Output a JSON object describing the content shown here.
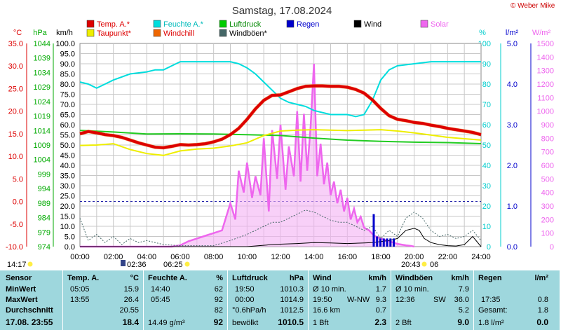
{
  "chart_data": {
    "type": "line",
    "title": "Samstag, 17.08.2024",
    "watermark": "© Weber Mike",
    "x_ticks": [
      "00:00",
      "02:00",
      "04:00",
      "06:00",
      "08:00",
      "10:00",
      "12:00",
      "14:00",
      "16:00",
      "18:00",
      "20:00",
      "22:00",
      "24:00"
    ],
    "xlim_hours": [
      0,
      24
    ],
    "axes": {
      "temp": {
        "label": "°C",
        "color": "#dd0000",
        "min": -10,
        "max": 35,
        "ticks": [
          "35.0",
          "30.0",
          "25.0",
          "20.0",
          "15.0",
          "10.0",
          "5.0",
          "0.0",
          "-5.0",
          "-10.0"
        ]
      },
      "hpa": {
        "label": "hPa",
        "color": "#00aa00",
        "ticks": [
          "1044",
          "1039",
          "1034",
          "1029",
          "1024",
          "1019",
          "1014",
          "1009",
          "1004",
          "999",
          "994",
          "989",
          "984",
          "979",
          "974"
        ]
      },
      "kmh": {
        "label": "km/h",
        "color": "#000000",
        "min": 0,
        "max": 100,
        "ticks": [
          "100.0",
          "95.0",
          "90.0",
          "85.0",
          "80.0",
          "75.0",
          "70.0",
          "65.0",
          "60.0",
          "55.0",
          "50.0",
          "45.0",
          "40.0",
          "35.0",
          "30.0",
          "25.0",
          "20.0",
          "15.0",
          "10.0",
          "5.0",
          "0.0"
        ]
      },
      "pct": {
        "label": "%",
        "color": "#00cccc",
        "min": 0,
        "max": 100,
        "ticks": [
          "100",
          "90",
          "80",
          "70",
          "60",
          "50",
          "40",
          "30",
          "20",
          "10",
          "0"
        ]
      },
      "rain": {
        "label": "l/m²",
        "color": "#0000cc",
        "min": 0,
        "max": 5,
        "ticks": [
          "5.0",
          "4.0",
          "3.0",
          "2.0",
          "1.0",
          "0.0"
        ]
      },
      "solar": {
        "label": "W/m²",
        "color": "#ee66ee",
        "min": 0,
        "max": 1500,
        "ticks": [
          "1500",
          "1400",
          "1300",
          "1200",
          "1100",
          "1000",
          "900",
          "800",
          "700",
          "600",
          "500",
          "400",
          "300",
          "200",
          "100",
          "0"
        ]
      }
    },
    "legend": [
      {
        "name": "Temp. A.*",
        "color": "#dd0000",
        "text_color": "#dd0000"
      },
      {
        "name": "Feuchte A.*",
        "color": "#00dddd",
        "text_color": "#00bbbb"
      },
      {
        "name": "Luftdruck",
        "color": "#00cc00",
        "text_color": "#008800"
      },
      {
        "name": "Regen",
        "color": "#0000cc",
        "text_color": "#0000cc"
      },
      {
        "name": "Wind",
        "color": "#000000",
        "text_color": "#000000"
      },
      {
        "name": "Solar",
        "color": "#ee66ee",
        "text_color": "#ee66ee"
      },
      {
        "name": "Taupunkt*",
        "color": "#eeee00",
        "text_color": "#dd0000"
      },
      {
        "name": "Windchill",
        "color": "#ee6600",
        "text_color": "#dd0000"
      },
      {
        "name": "Windböen*",
        "color": "#446666",
        "text_color": "#000000"
      }
    ],
    "series": {
      "temp": {
        "x": [
          0,
          0.5,
          1,
          1.5,
          2,
          2.5,
          3,
          3.5,
          4,
          4.5,
          5,
          5.5,
          6,
          6.5,
          7,
          7.5,
          8,
          8.5,
          9,
          9.5,
          10,
          10.5,
          11,
          11.5,
          12,
          12.5,
          13,
          13.5,
          14,
          14.5,
          15,
          15.5,
          16,
          16.5,
          17,
          17.5,
          18,
          18.5,
          19,
          19.5,
          20,
          20.5,
          21,
          21.5,
          22,
          22.5,
          23,
          23.5,
          24
        ],
        "y": [
          15.0,
          15.5,
          15.2,
          14.8,
          14.6,
          14.2,
          13.6,
          13.0,
          12.5,
          12.0,
          11.9,
          12.2,
          12.6,
          12.5,
          12.6,
          12.8,
          13.2,
          13.8,
          14.8,
          16.2,
          18.2,
          20.5,
          22.4,
          23.5,
          23.6,
          24.3,
          25.0,
          25.5,
          25.6,
          25.6,
          25.5,
          25.5,
          25.3,
          24.8,
          24.0,
          22.5,
          20.6,
          19.0,
          18.2,
          17.9,
          17.5,
          17.3,
          16.9,
          16.6,
          16.2,
          15.9,
          15.6,
          15.3,
          14.8
        ]
      },
      "dewpoint": {
        "x": [
          0,
          1,
          2,
          3,
          4,
          5,
          6,
          7,
          8,
          9,
          10,
          11,
          12,
          13,
          14,
          15,
          16,
          17,
          18,
          19,
          20,
          21,
          22,
          23,
          24
        ],
        "y": [
          12.4,
          12.5,
          12.8,
          11.5,
          10.6,
          10.2,
          11.2,
          11.6,
          11.8,
          12.3,
          13.0,
          14.6,
          15.6,
          15.8,
          15.9,
          15.8,
          15.7,
          15.8,
          15.9,
          15.6,
          15.2,
          14.7,
          14.2,
          13.9,
          13.6
        ]
      },
      "humidity": {
        "x": [
          0,
          0.5,
          1,
          1.5,
          2,
          3,
          4,
          4.5,
          5,
          5.5,
          6,
          7,
          8,
          9,
          9.5,
          10,
          10.5,
          11,
          11.5,
          12,
          12.5,
          13,
          13.5,
          14,
          14.5,
          15,
          15.5,
          16,
          16.5,
          17,
          17.5,
          18,
          18.5,
          19,
          20,
          21,
          22,
          23,
          23.5,
          24
        ],
        "y": [
          81,
          80,
          78,
          80,
          82,
          85,
          86,
          87,
          87,
          89,
          91,
          91,
          91,
          91,
          90,
          88,
          85,
          81,
          77,
          73,
          71,
          70,
          69,
          67,
          66,
          65,
          65,
          65,
          64,
          65,
          72,
          82,
          87,
          89,
          90,
          91,
          91,
          91,
          91,
          91
        ],
        "dash_x_start": 20,
        "note": "humidity Feuchte A.*"
      },
      "pressure_pct": {
        "x": [
          0,
          2,
          4,
          6,
          8,
          10,
          12,
          14,
          16,
          18,
          20,
          22,
          24
        ],
        "y": [
          57.2,
          56.4,
          55.4,
          55.5,
          55.4,
          55.1,
          54.7,
          53.4,
          52.4,
          51.8,
          51.4,
          51.2,
          50.7
        ]
      },
      "solar": {
        "x": [
          0,
          5.5,
          6,
          6.5,
          7,
          7.5,
          8,
          8.5,
          9,
          9.3,
          9.5,
          9.8,
          10,
          10.3,
          10.5,
          10.8,
          11,
          11.3,
          11.5,
          11.8,
          12,
          12.3,
          12.5,
          12.8,
          13,
          13.2,
          13.4,
          13.6,
          13.8,
          14,
          14.2,
          14.4,
          14.6,
          14.8,
          15,
          15.2,
          15.4,
          15.6,
          15.8,
          16,
          16.2,
          16.4,
          16.6,
          16.8,
          17,
          17.3,
          17.6,
          18,
          18.5,
          19,
          19.5,
          19.8,
          20
        ],
        "y": [
          0,
          0,
          10,
          40,
          60,
          80,
          100,
          120,
          320,
          200,
          560,
          400,
          620,
          360,
          520,
          380,
          800,
          260,
          860,
          500,
          900,
          420,
          740,
          520,
          1000,
          480,
          980,
          560,
          880,
          1350,
          520,
          760,
          460,
          620,
          380,
          480,
          320,
          420,
          260,
          360,
          200,
          280,
          180,
          220,
          140,
          120,
          80,
          60,
          40,
          20,
          10,
          5,
          0
        ]
      },
      "wind": {
        "x": [
          0,
          5,
          8,
          10,
          11.5,
          12,
          13,
          14,
          15,
          16,
          17,
          17.5,
          18,
          18.5,
          19,
          19.5,
          20,
          20.3,
          20.6,
          21,
          21.5,
          22,
          22.5,
          23,
          23.5,
          24
        ],
        "y": [
          0,
          0,
          0,
          0,
          1,
          1.2,
          1.5,
          2,
          1.8,
          1.5,
          1.8,
          2,
          2.5,
          3,
          4,
          8,
          9,
          8,
          4,
          2,
          1,
          0.5,
          0.3,
          1,
          5,
          0
        ]
      },
      "gusts": {
        "x": [
          0,
          0.5,
          1,
          1.5,
          2,
          2.5,
          3,
          3.5,
          4,
          5,
          6,
          7,
          8,
          9,
          10,
          10.5,
          11,
          11.5,
          12,
          12.5,
          13,
          13.5,
          14,
          14.5,
          15,
          15.5,
          16,
          16.5,
          17,
          17.5,
          18,
          18.5,
          19,
          19.5,
          20,
          20.5,
          21,
          21.5,
          22,
          22.5,
          23,
          23.5,
          24
        ],
        "y": [
          14,
          3,
          6,
          2,
          5,
          1,
          4,
          2,
          3,
          1,
          0.5,
          0.5,
          0.5,
          3,
          6,
          8,
          10,
          12,
          12,
          14,
          16,
          18,
          17,
          15,
          13,
          12,
          12,
          10,
          8,
          10,
          4,
          8,
          5,
          14,
          17,
          14,
          8,
          5,
          6,
          4,
          5,
          8,
          3
        ]
      },
      "rain_bars": {
        "x": [
          17.6,
          17.8,
          18.0,
          18.2,
          18.4,
          18.6,
          18.8
        ],
        "y": [
          0.8,
          0.25,
          0.2,
          0.2,
          0.2,
          0.2,
          0.2
        ]
      }
    },
    "bottom_markers": [
      {
        "text": "14:17",
        "type": "time"
      },
      {
        "text": "02:36",
        "type": "moon"
      },
      {
        "text": "06:25",
        "type": "sunrise"
      },
      {
        "text": "20:43",
        "type": "sunset"
      },
      {
        "text": "06",
        "type": "moon"
      }
    ]
  },
  "table": {
    "sensor": {
      "h": "Sensor",
      "r1": "MinWert",
      "r2": "MaxWert",
      "r3": "Durchschnitt",
      "r4": "17.08. 23:55"
    },
    "temp": {
      "h": "Temp. A.",
      "u": "°C",
      "min_t": "05:05",
      "min_v": "15.9",
      "max_t": "13:55",
      "max_v": "26.4",
      "avg_v": "20.55",
      "now_v": "18.4"
    },
    "hum": {
      "h": "Feuchte A.",
      "u": "%",
      "min_t": "14:40",
      "min_v": "62",
      "max_t": "05:45",
      "max_v": "92",
      "avg_v": "82",
      "now_l": "14.49 g/m³",
      "now_v": "92"
    },
    "press": {
      "h": "Luftdruck",
      "u": "hPa",
      "min_t": "19:50",
      "min_v": "1010.3",
      "max_t": "00:00",
      "max_v": "1014.9",
      "avg_l": "°0.6hPa/h",
      "avg_v": "1012.5",
      "now_l": "bewölkt",
      "now_v": "1010.5"
    },
    "wind": {
      "h": "Wind",
      "u": "km/h",
      "r1_l": "Ø 10 min.",
      "r1_v": "1.7",
      "r2_t": "19:50",
      "r2_d": "W-NW",
      "r2_v": "9.3",
      "r3_l": "16.6 km",
      "r3_v": "0.7",
      "r4_l": "1 Bft",
      "r4_v": "2.3"
    },
    "gust": {
      "h": "Windböen",
      "u": "km/h",
      "r1_l": "Ø 10 min.",
      "r1_v": "7.9",
      "r2_t": "12:36",
      "r2_d": "SW",
      "r2_v": "36.0",
      "r3_v": "5.2",
      "r4_l": "2 Bft",
      "r4_v": "9.0"
    },
    "rain": {
      "h": "Regen",
      "u": "l/m²",
      "r2_t": "17:35",
      "r2_v": "0.8",
      "r3_l": "Gesamt:",
      "r3_v": "1.8",
      "r4_l": "1.8 l/m²",
      "r4_v": "0.0"
    }
  }
}
